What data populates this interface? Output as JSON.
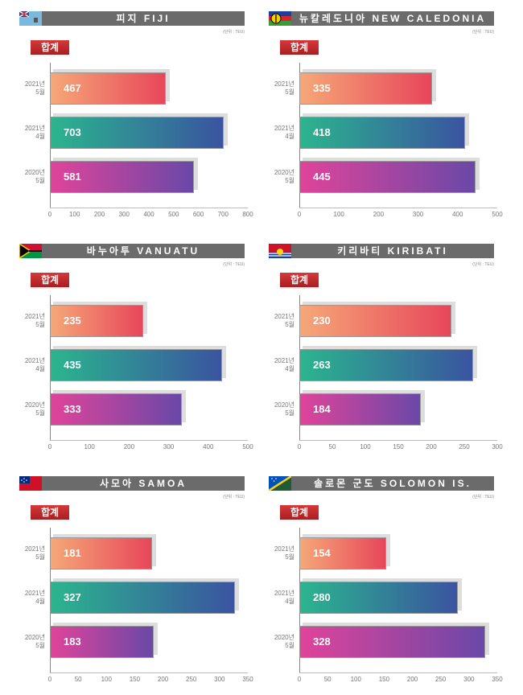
{
  "unit": "(단위 : TEU)",
  "badge": "합계",
  "colors": {
    "header": "#6b6b6b",
    "badge": "#c62a2e",
    "g2021_5": [
      "#f5a878",
      "#e8465a"
    ],
    "g2021_4": [
      "#2bb58e",
      "#3a54a0"
    ],
    "g2020_5": [
      "#e0449a",
      "#6a48a8"
    ]
  },
  "chart_data": [
    {
      "type": "bar",
      "title": "피지 FIJI",
      "flag": "fiji-flag",
      "categories": [
        "2021년\n5월",
        "2021년\n4월",
        "2020년\n5월"
      ],
      "values": [
        467,
        703,
        581
      ],
      "xlim": [
        0,
        800
      ],
      "ticks": [
        0,
        100,
        200,
        300,
        400,
        500,
        600,
        700,
        800
      ]
    },
    {
      "type": "bar",
      "title": "뉴칼레도니아 NEW CALEDONIA",
      "flag": "new-caledonia-flag",
      "categories": [
        "2021년\n5월",
        "2021년\n4월",
        "2020년\n5월"
      ],
      "values": [
        335,
        418,
        445
      ],
      "xlim": [
        0,
        500
      ],
      "ticks": [
        0,
        100,
        200,
        300,
        400,
        500
      ]
    },
    {
      "type": "bar",
      "title": "바누아투 VANUATU",
      "flag": "vanuatu-flag",
      "categories": [
        "2021년\n5월",
        "2021년\n4월",
        "2020년\n5월"
      ],
      "values": [
        235,
        435,
        333
      ],
      "xlim": [
        0,
        500
      ],
      "ticks": [
        0,
        100,
        200,
        300,
        400,
        500
      ]
    },
    {
      "type": "bar",
      "title": "키리바티 KIRIBATI",
      "flag": "kiribati-flag",
      "categories": [
        "2021년\n5월",
        "2021년\n4월",
        "2020년\n5월"
      ],
      "values": [
        230,
        263,
        184
      ],
      "xlim": [
        0,
        300
      ],
      "ticks": [
        0,
        50,
        100,
        150,
        200,
        250,
        300
      ]
    },
    {
      "type": "bar",
      "title": "사모아 SAMOA",
      "flag": "samoa-flag",
      "categories": [
        "2021년\n5월",
        "2021년\n4월",
        "2020년\n5월"
      ],
      "values": [
        181,
        327,
        183
      ],
      "xlim": [
        0,
        350
      ],
      "ticks": [
        0,
        50,
        100,
        150,
        200,
        250,
        300,
        350
      ]
    },
    {
      "type": "bar",
      "title": "솔로몬 군도 SOLOMON IS.",
      "flag": "solomon-islands-flag",
      "categories": [
        "2021년\n5월",
        "2021년\n4월",
        "2020년\n5월"
      ],
      "values": [
        154,
        280,
        328
      ],
      "xlim": [
        0,
        350
      ],
      "ticks": [
        0,
        50,
        100,
        150,
        200,
        250,
        300,
        350
      ]
    }
  ]
}
